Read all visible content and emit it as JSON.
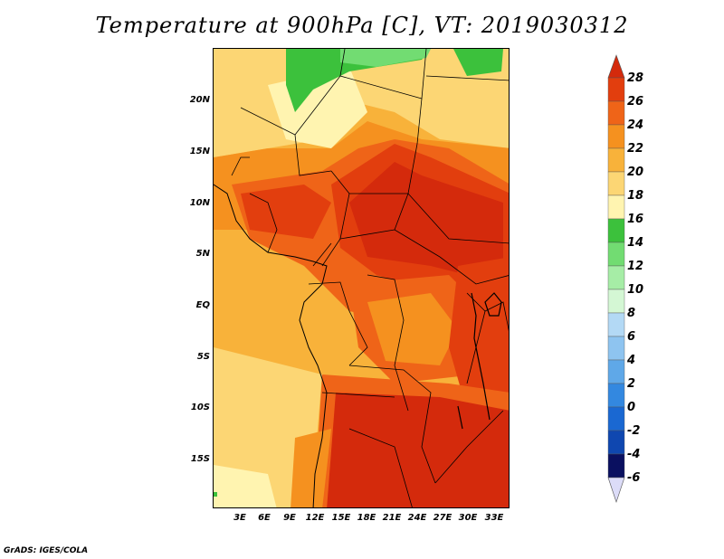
{
  "title": "Temperature at 900hPa [C], VT: 2019030312",
  "footer": "GrADS: IGES/COLA",
  "axes": {
    "latitude_labels": [
      "20N",
      "15N",
      "10N",
      "5N",
      "EQ",
      "5S",
      "10S",
      "15S"
    ],
    "longitude_labels": [
      "3E",
      "6E",
      "9E",
      "12E",
      "15E",
      "18E",
      "21E",
      "24E",
      "27E",
      "30E",
      "33E"
    ]
  },
  "colorbar": {
    "labels": [
      "28",
      "26",
      "24",
      "22",
      "20",
      "18",
      "16",
      "14",
      "12",
      "10",
      "8",
      "6",
      "4",
      "2",
      "0",
      "-2",
      "-4",
      "-6"
    ],
    "colors": [
      "#d42a0c",
      "#e23e0e",
      "#ef6418",
      "#f5911f",
      "#f8b23a",
      "#fcd674",
      "#fff4b0",
      "#3cc13c",
      "#72dc72",
      "#a6eda6",
      "#d4f7d4",
      "#b3d9f5",
      "#8ec4f0",
      "#5fa8e8",
      "#3388e0",
      "#1a68d2",
      "#0f47b0",
      "#082a85",
      "#0a1060",
      "#dcdcf8"
    ]
  },
  "map_colors": {
    "ocean_cool": "#f8b23a",
    "warm": "#f5911f",
    "hot": "#e23e0e",
    "hottest": "#d42a0c",
    "sahara": "#fcd674",
    "pale": "#fff4b0",
    "green": "#3cc13c",
    "lightgreen": "#72dc72",
    "border": "#000000"
  }
}
